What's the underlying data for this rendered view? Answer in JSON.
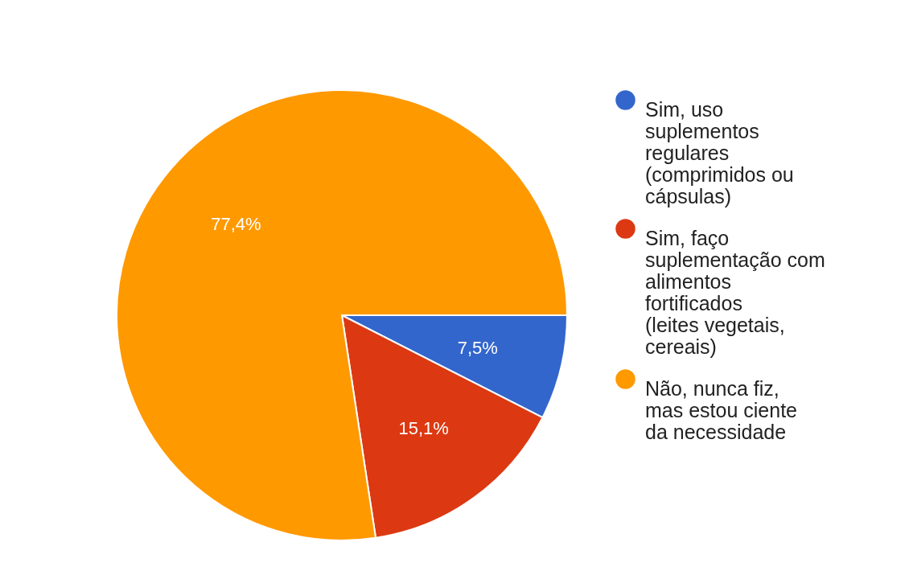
{
  "chart_data": {
    "type": "pie",
    "categories": [
      "Sim, uso suplementos regulares (comprimidos ou cápsulas)",
      "Sim, faço suplementação com alimentos fortificados (leites vegetais, cereais)",
      "Não, nunca fiz, mas estou ciente da necessidade"
    ],
    "values": [
      7.5,
      15.1,
      77.4
    ],
    "value_labels": [
      "7,5%",
      "15,1%",
      "77,4%"
    ],
    "colors": [
      "#3366cc",
      "#dc3912",
      "#ff9900"
    ],
    "legend": "right"
  }
}
